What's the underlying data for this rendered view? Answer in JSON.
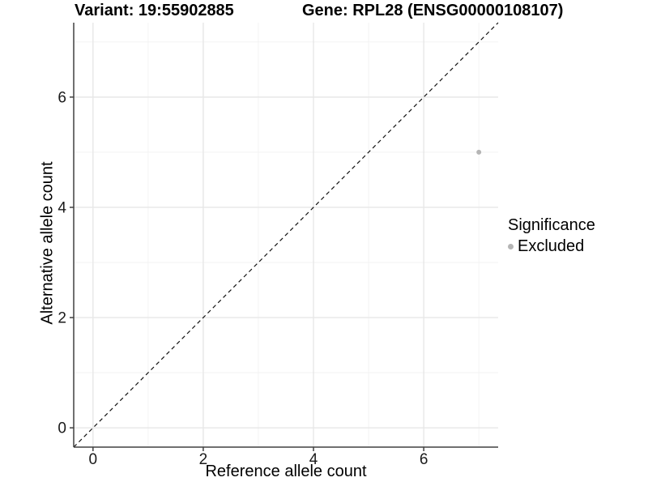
{
  "titles": {
    "variant": "Variant: 19:55902885",
    "gene": "Gene: RPL28 (ENSG00000108107)"
  },
  "axes": {
    "x_label": "Reference allele count",
    "y_label": "Alternative allele count",
    "x_tick_labels": [
      "0",
      "2",
      "4",
      "6"
    ],
    "y_tick_labels": [
      "0",
      "2",
      "4",
      "6"
    ]
  },
  "legend": {
    "title": "Significance",
    "items": [
      {
        "label": "Excluded",
        "color": "#b5b5b5"
      }
    ]
  },
  "colors": {
    "background": "#ffffff",
    "grid_major": "#e7e7e7",
    "grid_minor": "#f2f2f2",
    "axis_line": "#404040",
    "tick_text": "#1a1a1a",
    "reference_line": "#111111",
    "point": "#b5b5b5"
  },
  "chart_data": {
    "type": "scatter",
    "title": "Variant: 19:55902885   |   Gene: RPL28 (ENSG00000108107)",
    "xlabel": "Reference allele count",
    "ylabel": "Alternative allele count",
    "xlim": [
      -0.35,
      7.35
    ],
    "ylim": [
      -0.35,
      7.35
    ],
    "x_major_ticks": [
      0,
      2,
      4,
      6
    ],
    "y_major_ticks": [
      0,
      2,
      4,
      6
    ],
    "x_minor_ticks": [
      1,
      3,
      5,
      7
    ],
    "y_minor_ticks": [
      1,
      3,
      5,
      7
    ],
    "grid": "major+minor",
    "legend_position": "right",
    "legend_title": "Significance",
    "series": [
      {
        "name": "Excluded",
        "color": "#b5b5b5",
        "points": [
          {
            "x": 7,
            "y": 5
          }
        ]
      }
    ],
    "reference_line": {
      "type": "identity",
      "equation": "y = x",
      "style": "dashed",
      "color": "#111111",
      "from": [
        -0.35,
        -0.35
      ],
      "to": [
        7.35,
        7.35
      ]
    }
  }
}
